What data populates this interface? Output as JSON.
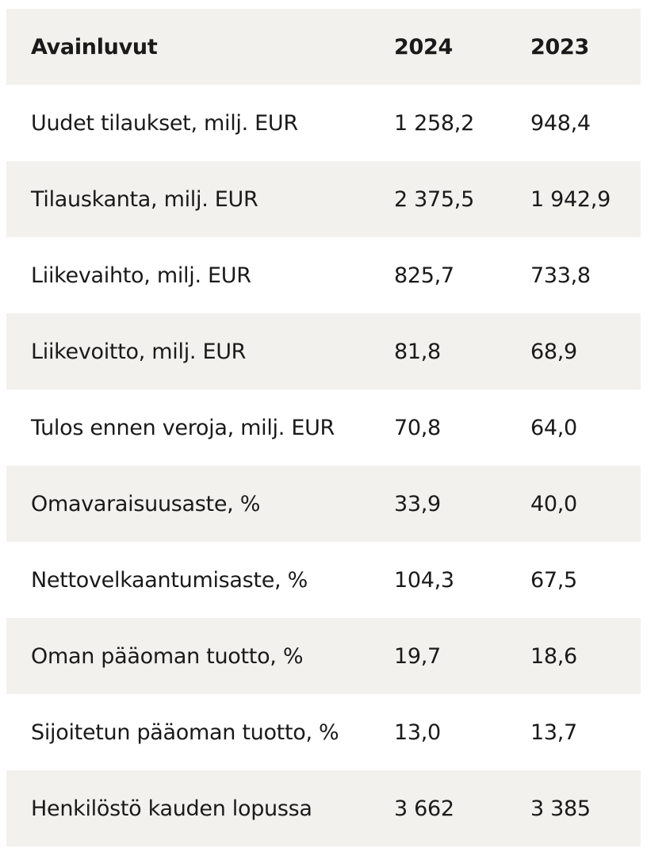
{
  "table": {
    "header": {
      "label": "Avainluvut",
      "year1": "2024",
      "year2": "2023"
    },
    "rows": [
      {
        "label": "Uudet tilaukset, milj. EUR",
        "v2024": "1 258,2",
        "v2023": "948,4"
      },
      {
        "label": "Tilauskanta, milj. EUR",
        "v2024": "2 375,5",
        "v2023": "1 942,9"
      },
      {
        "label": "Liikevaihto, milj. EUR",
        "v2024": "825,7",
        "v2023": "733,8"
      },
      {
        "label": "Liikevoitto, milj. EUR",
        "v2024": "81,8",
        "v2023": "68,9"
      },
      {
        "label": "Tulos ennen veroja, milj. EUR",
        "v2024": "70,8",
        "v2023": "64,0"
      },
      {
        "label": "Omavaraisuusaste, %",
        "v2024": "33,9",
        "v2023": "40,0"
      },
      {
        "label": "Nettovelkaantumisaste, %",
        "v2024": "104,3",
        "v2023": "67,5"
      },
      {
        "label": "Oman pääoman tuotto, %",
        "v2024": "19,7",
        "v2023": "18,6"
      },
      {
        "label": "Sijoitetun pääoman tuotto, %",
        "v2024": "13,0",
        "v2023": "13,7"
      },
      {
        "label": "Henkilöstö kauden lopussa",
        "v2024": "3 662",
        "v2023": "3 385"
      }
    ],
    "colors": {
      "shaded_row": "#f2f1ed",
      "plain_row": "#ffffff",
      "text": "#1a1a1a"
    }
  }
}
